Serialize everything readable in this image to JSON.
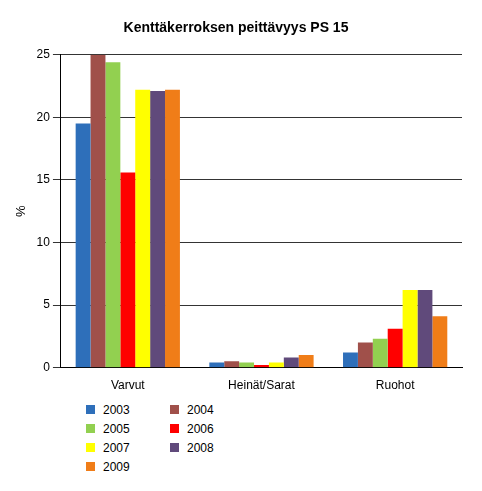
{
  "chart_data": {
    "type": "bar",
    "title": "Kenttäkerroksen peittävyys PS 15",
    "y_label": "%",
    "categories": [
      "Varvut",
      "Heinät/Sarat",
      "Ruohot"
    ],
    "series": [
      {
        "name": "2003",
        "color": "#2e6fba",
        "values": [
          19.5,
          0.4,
          1.2
        ]
      },
      {
        "name": "2004",
        "color": "#a0504a",
        "values": [
          25,
          0.5,
          2.0
        ]
      },
      {
        "name": "2005",
        "color": "#92d050",
        "values": [
          24.4,
          0.4,
          2.3
        ]
      },
      {
        "name": "2006",
        "color": "#ff0000",
        "values": [
          15.6,
          0.2,
          3.1
        ]
      },
      {
        "name": "2007",
        "color": "#ffff00",
        "values": [
          22.2,
          0.4,
          6.2
        ]
      },
      {
        "name": "2008",
        "color": "#604a7b",
        "values": [
          22.1,
          0.8,
          6.2
        ]
      },
      {
        "name": "2009",
        "color": "#f07d18",
        "values": [
          22.2,
          1.0,
          4.1
        ]
      }
    ],
    "ylim": [
      0,
      25
    ],
    "yticks": [
      0,
      5,
      10,
      15,
      20,
      25
    ],
    "grid": true,
    "legend": "bottom"
  }
}
